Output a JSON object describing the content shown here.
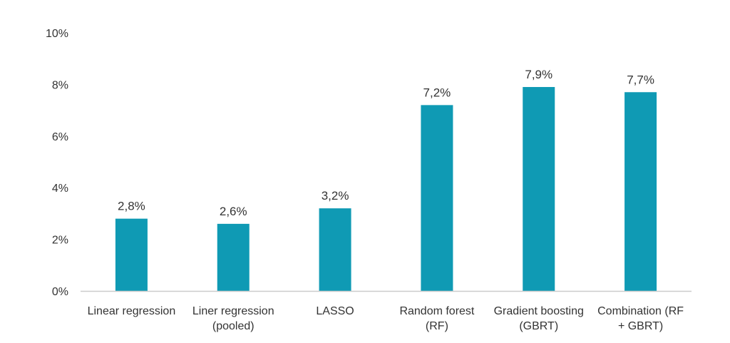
{
  "chart_data": {
    "type": "bar",
    "title": "",
    "xlabel": "",
    "ylabel": "",
    "categories": [
      [
        "Linear regression"
      ],
      [
        "Liner regression",
        "(pooled)"
      ],
      [
        "LASSO"
      ],
      [
        "Random forest",
        "(RF)"
      ],
      [
        "Gradient boosting",
        "(GBRT)"
      ],
      [
        "Combination (RF",
        "+ GBRT)"
      ]
    ],
    "values": [
      2.8,
      2.6,
      3.2,
      7.2,
      7.9,
      7.7
    ],
    "value_labels": [
      "2,8%",
      "2,6%",
      "3,2%",
      "7,2%",
      "7,9%",
      "7,7%"
    ],
    "ylim": [
      0,
      10
    ],
    "yticks": [
      0,
      2,
      4,
      6,
      8,
      10
    ],
    "ytick_labels": [
      "0%",
      "2%",
      "4%",
      "6%",
      "8%",
      "10%"
    ],
    "grid": false,
    "legend": "none",
    "colors": {
      "bar": "#0f9ab4",
      "axis": "#cccccc",
      "text": "#333333"
    }
  }
}
